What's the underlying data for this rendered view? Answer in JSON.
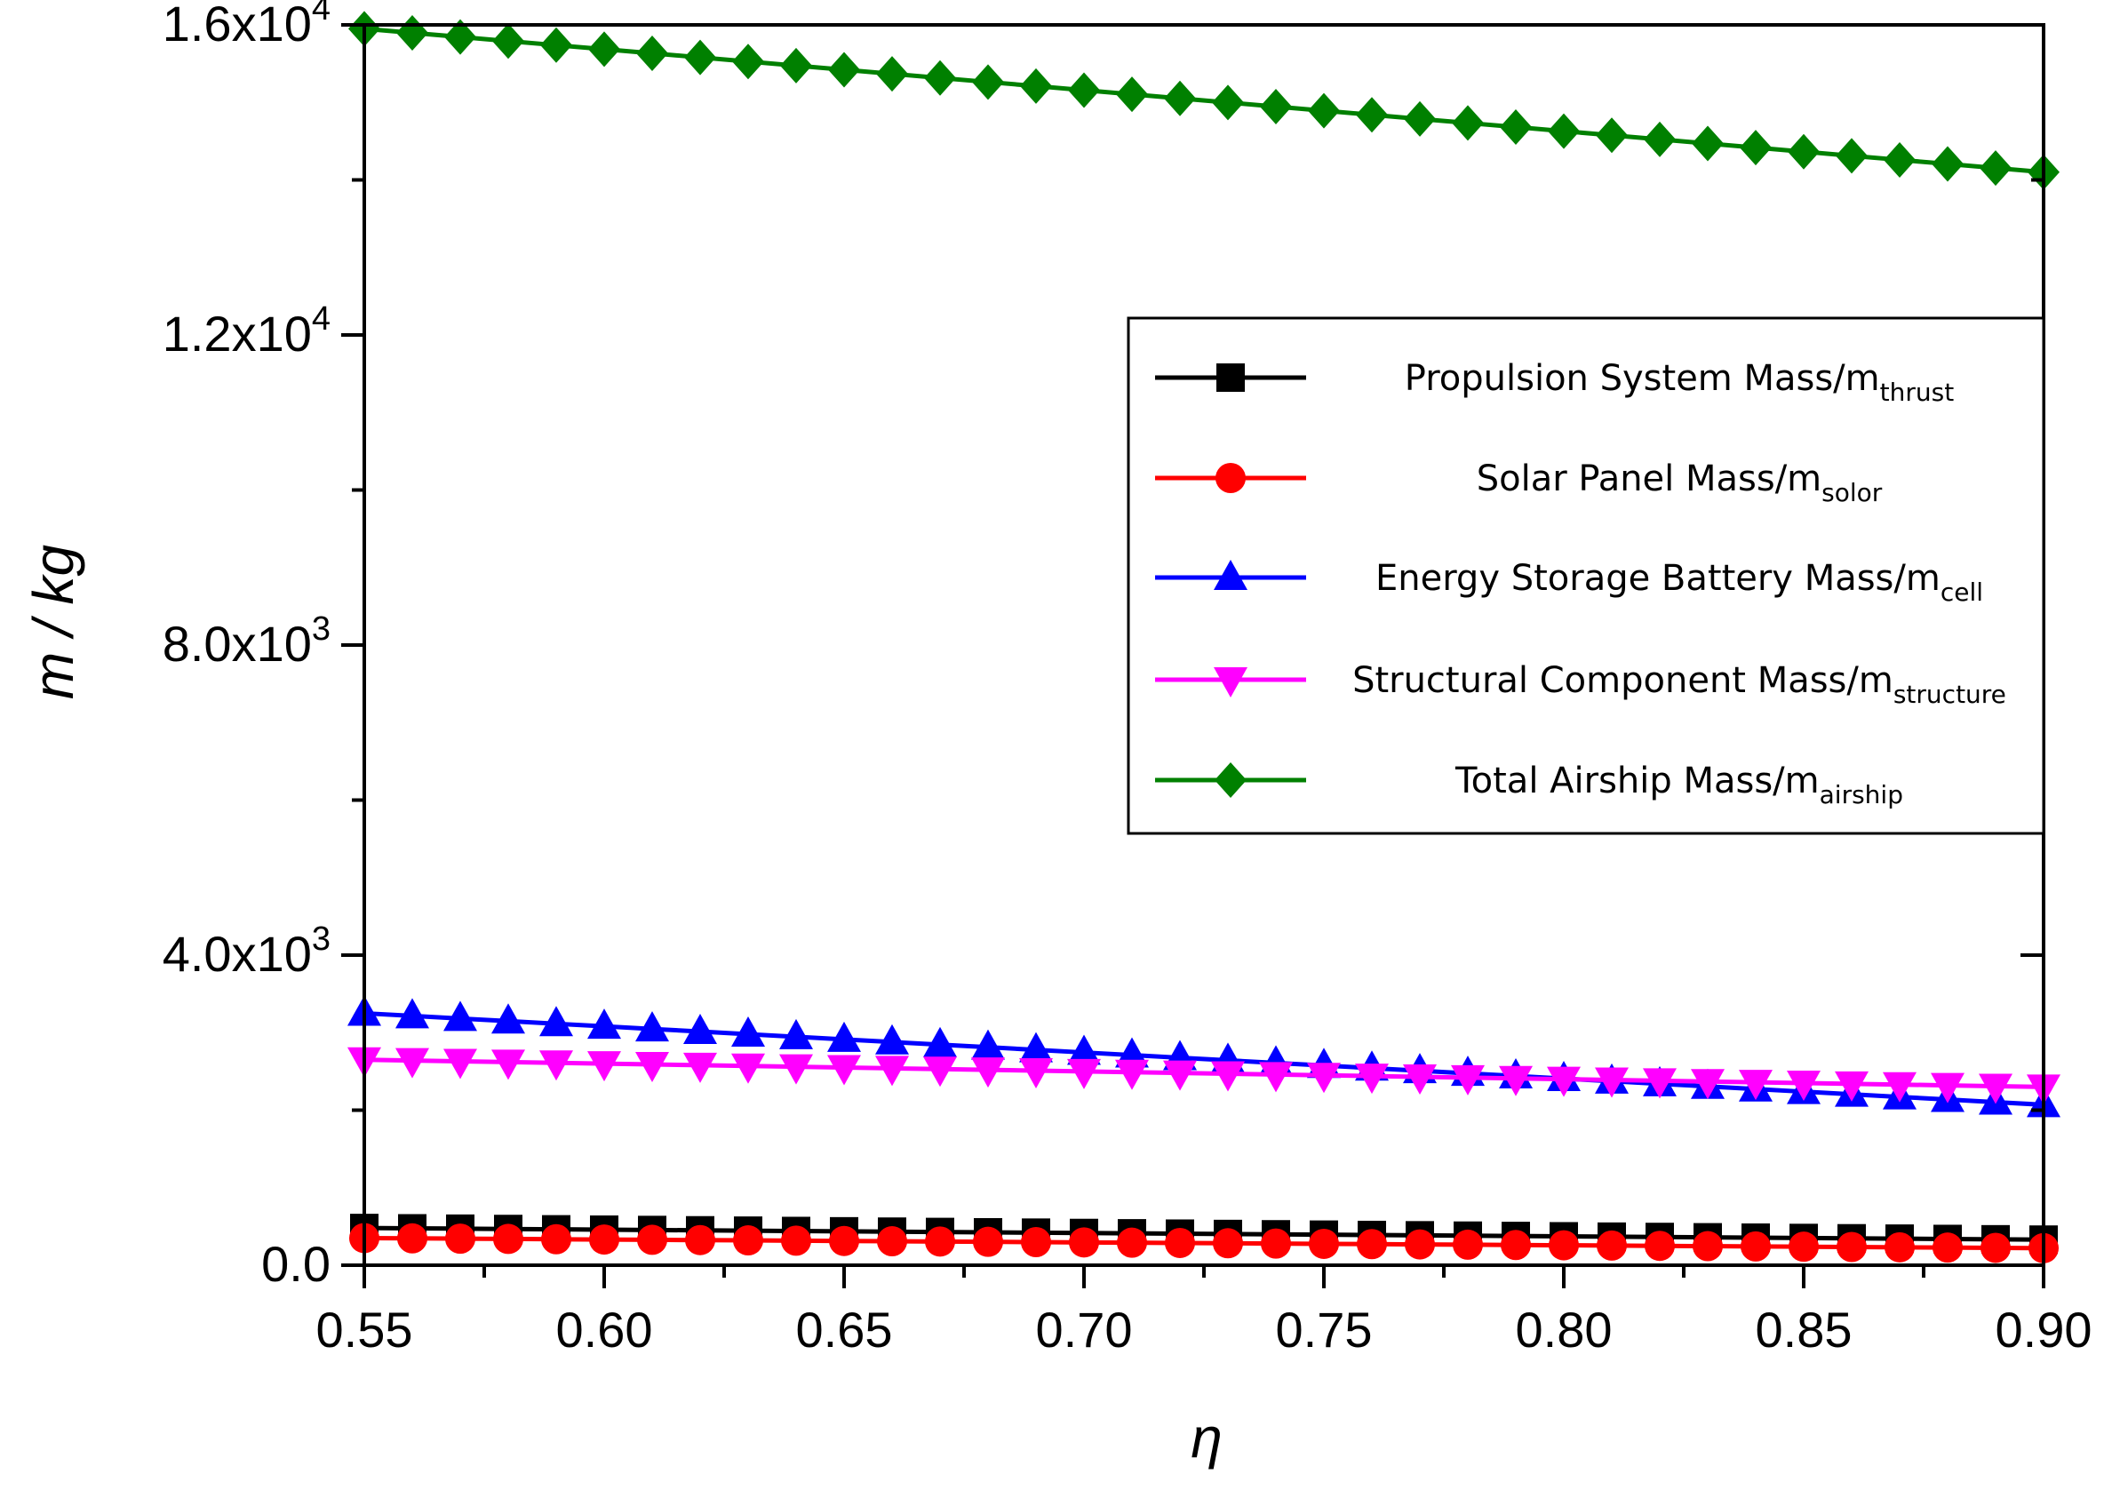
{
  "chart_data": {
    "type": "line",
    "title": "",
    "xlabel": "η",
    "ylabel": "m / kg",
    "xlim": [
      0.55,
      0.9
    ],
    "ylim": [
      0,
      16000
    ],
    "grid": false,
    "legend_position": "right",
    "x": [
      0.55,
      0.56,
      0.57,
      0.58,
      0.59,
      0.6,
      0.61,
      0.62,
      0.63,
      0.64,
      0.65,
      0.66,
      0.67,
      0.68,
      0.69,
      0.7,
      0.71,
      0.72,
      0.73,
      0.74,
      0.75,
      0.76,
      0.77,
      0.78,
      0.79,
      0.8,
      0.81,
      0.82,
      0.83,
      0.84,
      0.85,
      0.86,
      0.87,
      0.88,
      0.89,
      0.9
    ],
    "x_ticks": [
      "0.55",
      "0.60",
      "0.65",
      "0.70",
      "0.75",
      "0.80",
      "0.85",
      "0.90"
    ],
    "y_ticks": [
      {
        "value": 0,
        "mantissa": "0.0",
        "exp": ""
      },
      {
        "value": 4000,
        "mantissa": "4.0x10",
        "exp": "3"
      },
      {
        "value": 8000,
        "mantissa": "8.0x10",
        "exp": "3"
      },
      {
        "value": 12000,
        "mantissa": "1.2x10",
        "exp": "4"
      },
      {
        "value": 16000,
        "mantissa": "1.6x10",
        "exp": "4"
      }
    ],
    "series": [
      {
        "key": "thrust",
        "name": "Propulsion System Mass/m",
        "subscript": "thrust",
        "color": "#000000",
        "marker": "square",
        "start": 480,
        "end": 330
      },
      {
        "key": "solar",
        "name": "Solar Panel Mass/m",
        "subscript": "solor",
        "color": "#ff0000",
        "marker": "circle",
        "start": 350,
        "end": 220
      },
      {
        "key": "cell",
        "name": "Energy Storage Battery Mass/m",
        "subscript": "cell",
        "color": "#0000ff",
        "marker": "triangle-up",
        "start": 3250,
        "end": 2070
      },
      {
        "key": "structure",
        "name": "Structural Component Mass/m",
        "subscript": "structure",
        "color": "#ff00ff",
        "marker": "triangle-down",
        "start": 2650,
        "end": 2300
      },
      {
        "key": "airship",
        "name": "Total Airship Mass/m",
        "subscript": "airship",
        "color": "#008000",
        "marker": "diamond",
        "start": 15950,
        "end": 14100
      }
    ]
  }
}
